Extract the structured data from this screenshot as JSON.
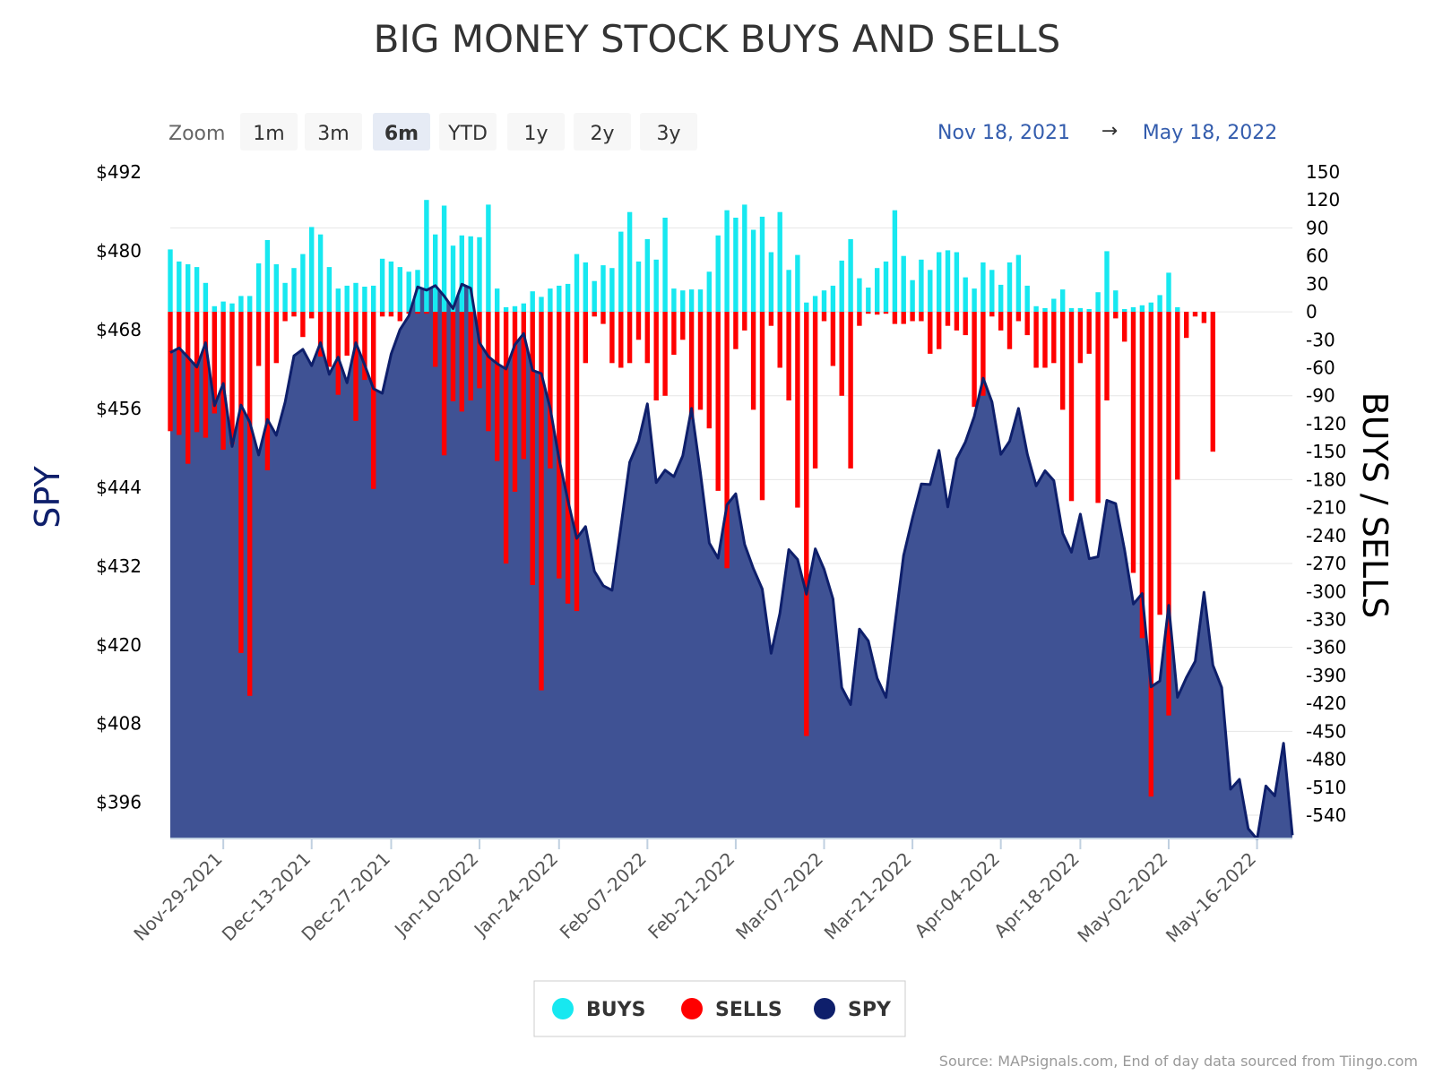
{
  "chart_data": {
    "type": "bar",
    "title": "BIG MONEY STOCK BUYS AND SELLS",
    "y_left_label": "SPY",
    "y_right_label": "BUYS / SELLS",
    "y_left_ticks": [
      "$492",
      "$480",
      "$468",
      "$456",
      "$444",
      "$432",
      "$420",
      "$408",
      "$396"
    ],
    "y_left_range": [
      390.5,
      492
    ],
    "y_right_ticks": [
      "150",
      "120",
      "90",
      "60",
      "30",
      "0",
      "-30",
      "-60",
      "-90",
      "-120",
      "-150",
      "-180",
      "-210",
      "-240",
      "-270",
      "-300",
      "-330",
      "-360",
      "-390",
      "-420",
      "-450",
      "-480",
      "-510",
      "-540"
    ],
    "y_right_range": [
      -565,
      150
    ],
    "x_tick_labels": [
      "Nov-29-2021",
      "Dec-13-2021",
      "Dec-27-2021",
      "Jan-10-2022",
      "Jan-24-2022",
      "Feb-07-2022",
      "Feb-21-2022",
      "Mar-07-2022",
      "Mar-21-2022",
      "Apr-04-2022",
      "Apr-18-2022",
      "May-02-2022",
      "May-16-2022"
    ],
    "x_tick_positions": [
      6,
      16,
      25,
      35,
      44,
      54,
      64,
      74,
      84,
      94,
      103,
      113,
      123
    ],
    "series": [
      {
        "name": "BUYS",
        "color": "#17e8f0",
        "values": [
          67,
          54,
          51,
          48,
          31,
          6,
          11,
          9,
          17,
          17,
          52,
          77,
          51,
          31,
          47,
          62,
          91,
          83,
          48,
          25,
          28,
          31,
          27,
          28,
          57,
          54,
          48,
          43,
          45,
          120,
          83,
          114,
          71,
          82,
          81,
          80,
          115,
          25,
          5,
          6,
          9,
          22,
          16,
          25,
          28,
          30,
          62,
          53,
          33,
          50,
          47,
          86,
          107,
          54,
          78,
          56,
          101,
          25,
          23,
          24,
          24,
          43,
          82,
          109,
          101,
          115,
          88,
          102,
          64,
          107,
          45,
          61,
          10,
          17,
          23,
          28,
          55,
          78,
          36,
          26,
          47,
          54,
          109,
          60,
          34,
          56,
          45,
          64,
          66,
          64,
          37,
          25,
          53,
          45,
          29,
          53,
          61,
          28,
          6,
          4,
          14,
          24,
          4,
          4,
          3,
          21,
          65,
          23,
          3,
          5,
          7,
          10,
          18,
          42,
          5
        ],
        "name2": "SELLS"
      },
      {
        "name": "SELLS",
        "color": "#ff0000",
        "values": [
          -128,
          -132,
          -163,
          -129,
          -135,
          -109,
          -148,
          -142,
          -366,
          -412,
          -58,
          -170,
          -55,
          -10,
          -5,
          -27,
          -7,
          -48,
          -59,
          -89,
          -47,
          -117,
          -73,
          -190,
          -5,
          -5,
          -10,
          -2,
          -2,
          -2,
          -59,
          -154,
          -96,
          -107,
          -95,
          -82,
          -128,
          -160,
          -270,
          -193,
          -158,
          -293,
          -406,
          -168,
          -286,
          -313,
          -321,
          -55,
          -5,
          -13,
          -55,
          -60,
          -55,
          -30,
          -55,
          -95,
          -90,
          -46,
          -30,
          -115,
          -105,
          -125,
          -192,
          -275,
          -40,
          -20,
          -105,
          -202,
          -15,
          -60,
          -95,
          -210,
          -455,
          -168,
          -10,
          -58,
          -90,
          -168,
          -15,
          -2,
          -3,
          -2,
          -13,
          -13,
          -10,
          -10,
          -45,
          -40,
          -15,
          -20,
          -25,
          -102,
          -90,
          -5,
          -20,
          -40,
          -10,
          -25,
          -60,
          -60,
          -55,
          -105,
          -203,
          -55,
          -45,
          -205,
          -95,
          -7,
          -32,
          -280,
          -350,
          -520,
          -325,
          -433,
          -180,
          -28,
          -5,
          -12,
          -150
        ],
        "name2": "x"
      },
      {
        "name": "SPY",
        "color": "#0e1f6b",
        "values": [
          464.5,
          465.2,
          463.8,
          462.3,
          466.0,
          456.4,
          459.8,
          450.2,
          456.5,
          453.9,
          448.9,
          454.3,
          451.9,
          457.0,
          464.0,
          465.0,
          462.5,
          466.0,
          461.2,
          463.8,
          459.9,
          466.0,
          462.6,
          459.0,
          458.3,
          464.3,
          468.0,
          470.1,
          474.5,
          474.0,
          474.7,
          473.1,
          471.2,
          474.9,
          474.3,
          466.0,
          463.9,
          462.8,
          462.0,
          465.7,
          467.4,
          461.8,
          461.3,
          456.0,
          448.3,
          442.0,
          436.2,
          438.0,
          431.2,
          429.0,
          428.3,
          438.0,
          447.8,
          451.0,
          456.7,
          444.7,
          446.6,
          445.6,
          448.8,
          456.0,
          446.2,
          435.5,
          433.2,
          441.3,
          443.0,
          435.3,
          431.6,
          428.5,
          418.7,
          424.8,
          434.5,
          433.0,
          427.7,
          434.6,
          431.5,
          427.0,
          413.5,
          410.9,
          422.4,
          420.6,
          414.9,
          412.0,
          423.0,
          433.6,
          439.3,
          444.5,
          444.4,
          449.6,
          441.0,
          448.3,
          450.9,
          454.8,
          460.6,
          457.0,
          449.0,
          451.0,
          456.0,
          449.0,
          444.2,
          446.5,
          445.0,
          437.0,
          434.1,
          439.9,
          433.1,
          433.4,
          442.0,
          441.5,
          434.5,
          426.2,
          427.8,
          413.6,
          414.5,
          426.0,
          412.0,
          415.0,
          417.5,
          428.0,
          416.9,
          413.5,
          398.0,
          399.5,
          392.0,
          390.4,
          398.5,
          397.0,
          405.0,
          391.0
        ],
        "name2": "y"
      }
    ],
    "legend": {
      "position": "bottom-center",
      "items": [
        {
          "label": "BUYS",
          "color": "#17e8f0"
        },
        {
          "label": "SELLS",
          "color": "#ff0000"
        },
        {
          "label": "SPY",
          "color": "#0e1f6b"
        }
      ]
    },
    "grid": true
  },
  "zoom": {
    "label": "Zoom",
    "buttons": [
      {
        "label": "1m",
        "selected": false
      },
      {
        "label": "3m",
        "selected": false
      },
      {
        "label": "6m",
        "selected": true
      },
      {
        "label": "YTD",
        "selected": false
      },
      {
        "label": "1y",
        "selected": false
      },
      {
        "label": "2y",
        "selected": false
      },
      {
        "label": "3y",
        "selected": false
      }
    ]
  },
  "range": {
    "from": "Nov 18, 2021",
    "arrow": "→",
    "to": "May 18, 2022"
  },
  "credits": "Source: MAPsignals.com, End of day data sourced from Tiingo.com"
}
